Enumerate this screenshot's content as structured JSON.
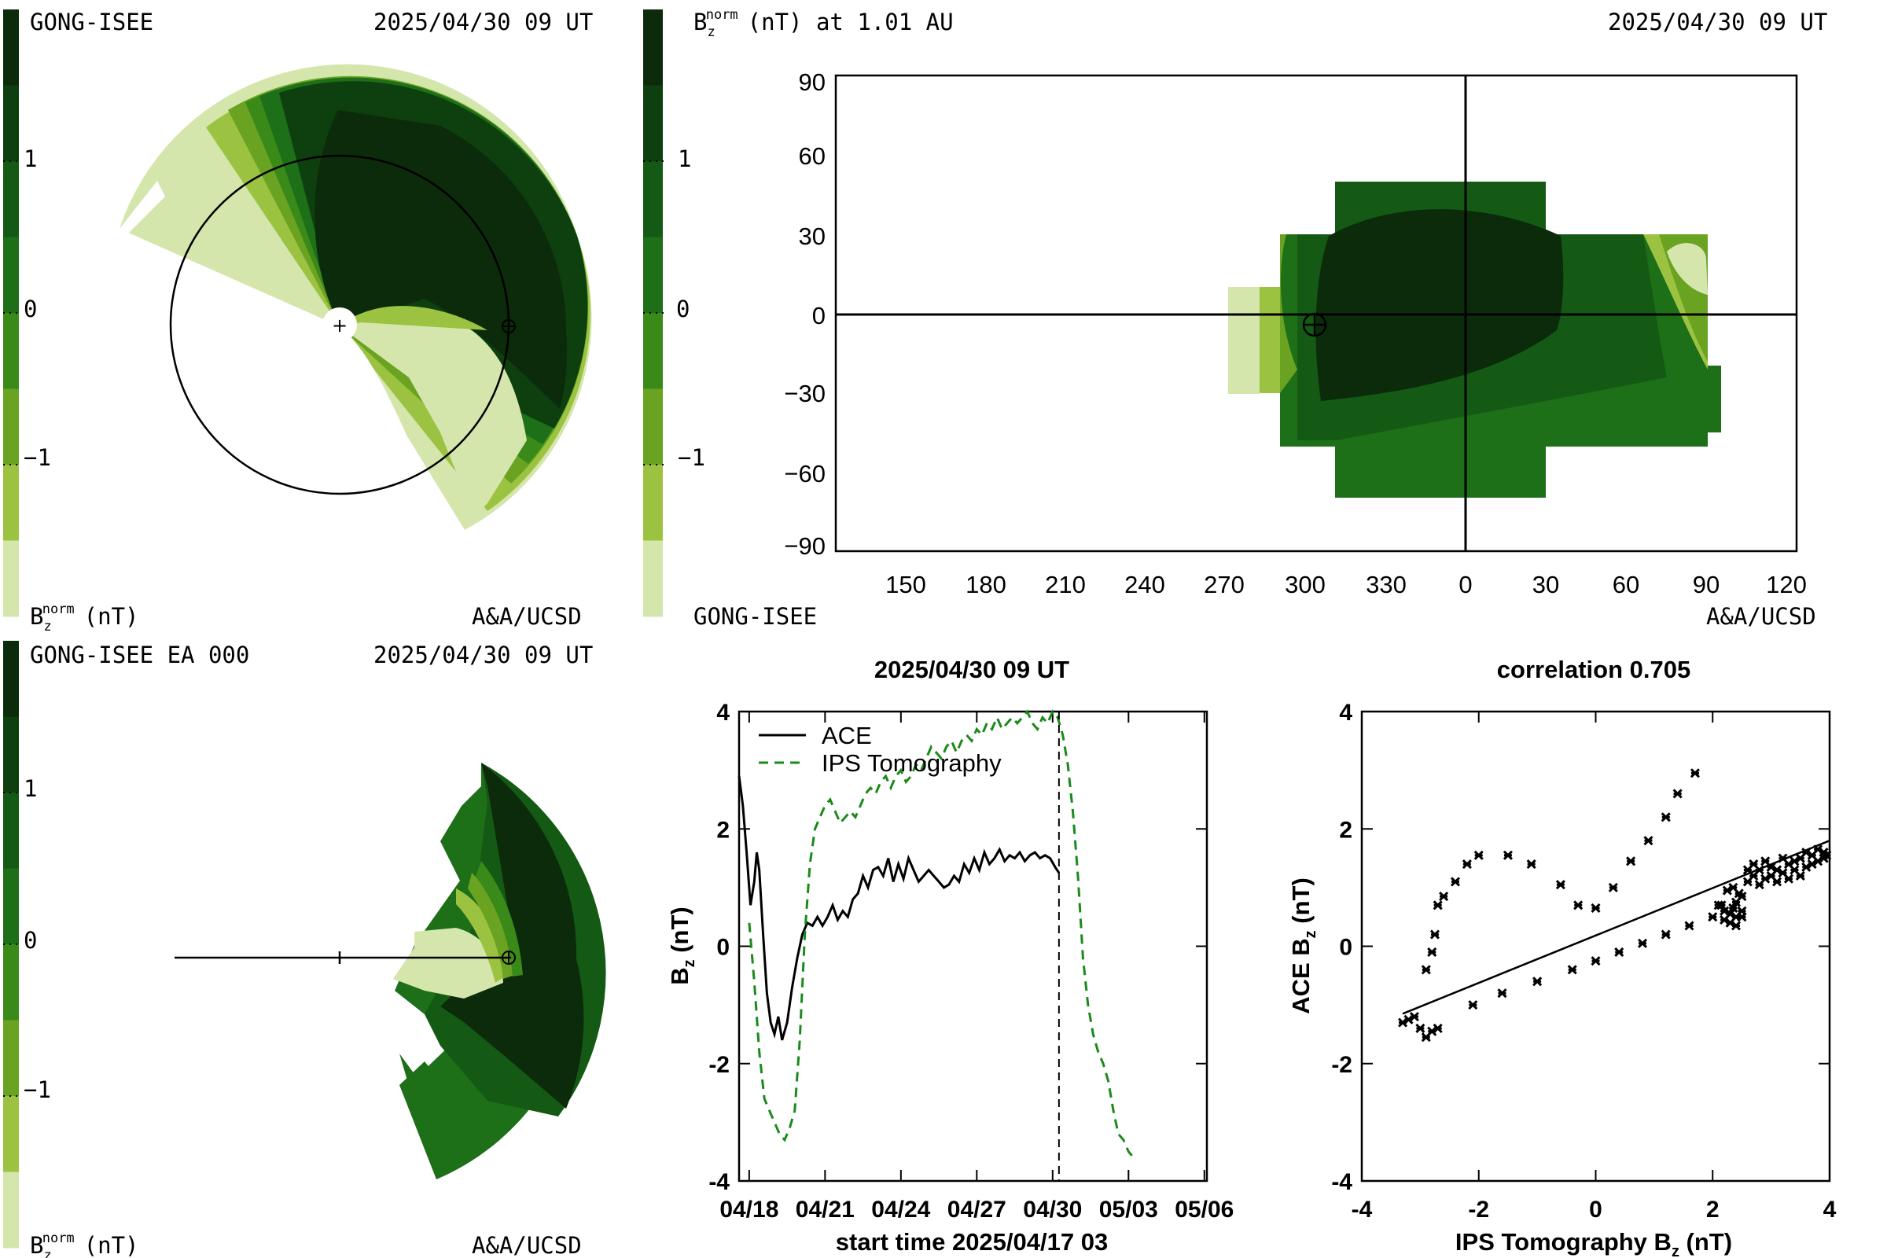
{
  "colors": {
    "scale": [
      "#0b2b0b",
      "#0e3f0e",
      "#145a14",
      "#1d6f18",
      "#3a8a1a",
      "#6aa321",
      "#9cc242",
      "#d4e6ac"
    ],
    "ace_line": "#000000",
    "ips_line": "#1a8a1a",
    "axis": "#000000"
  },
  "top_left": {
    "label_left": "GONG-ISEE",
    "timestamp": "2025/04/30 09 UT",
    "bottom_units": "B",
    "bottom_units_sub": "z",
    "bottom_units_sup": "norm",
    "bottom_units_rest": "(nT)",
    "credit": "A&A/UCSD",
    "colorbar_ticks": [
      "1",
      "0",
      "−1"
    ]
  },
  "top_right": {
    "title_symbol": "B",
    "title_sub": "z",
    "title_sup": "norm",
    "title_rest": "(nT) at 1.01 AU",
    "timestamp": "2025/04/30 09 UT",
    "bottom_left": "GONG-ISEE",
    "credit": "A&A/UCSD",
    "colorbar_ticks": [
      "1",
      "0",
      "−1"
    ],
    "y_ticks": [
      "90",
      "60",
      "30",
      "0",
      "−30",
      "−60",
      "−90"
    ],
    "x_ticks": [
      "150",
      "180",
      "210",
      "240",
      "270",
      "300",
      "330",
      "0",
      "30",
      "60",
      "90",
      "120"
    ]
  },
  "bottom_left": {
    "label_left": "GONG-ISEE EA 000",
    "timestamp": "2025/04/30 09 UT",
    "bottom_units": "B",
    "bottom_units_sub": "z",
    "bottom_units_sup": "norm",
    "bottom_units_rest": "(nT)",
    "credit": "A&A/UCSD",
    "colorbar_ticks": [
      "1",
      "0",
      "−1"
    ]
  },
  "chart_data": [
    {
      "type": "line",
      "title": "2025/04/30 09 UT",
      "xlabel": "start time 2025/04/17 03",
      "ylabel": "B_z (nT)",
      "ylabel_main": "B",
      "ylabel_sub": "z",
      "ylabel_rest": " (nT)",
      "x_tick_labels": [
        "04/18",
        "04/21",
        "04/24",
        "04/27",
        "04/30",
        "05/03",
        "05/06"
      ],
      "x_tick_days": [
        1,
        4,
        7,
        10,
        13,
        16,
        19
      ],
      "xlim_days": [
        0.6,
        19.1
      ],
      "ylim": [
        -4,
        4
      ],
      "y_ticks": [
        -4,
        -2,
        0,
        2,
        4
      ],
      "current_time_day": 13.25,
      "legend_position": "top-left",
      "series": [
        {
          "name": "ACE",
          "style": "solid",
          "x_days": [
            0.6,
            0.75,
            0.9,
            1.05,
            1.2,
            1.3,
            1.4,
            1.55,
            1.7,
            1.85,
            2.0,
            2.15,
            2.3,
            2.5,
            2.7,
            2.9,
            3.1,
            3.3,
            3.5,
            3.7,
            3.9,
            4.1,
            4.3,
            4.5,
            4.7,
            4.9,
            5.1,
            5.3,
            5.5,
            5.7,
            5.9,
            6.1,
            6.3,
            6.5,
            6.7,
            6.9,
            7.1,
            7.3,
            7.5,
            7.7,
            7.9,
            8.1,
            8.3,
            8.5,
            8.7,
            8.9,
            9.1,
            9.3,
            9.5,
            9.7,
            9.9,
            10.1,
            10.3,
            10.5,
            10.7,
            10.9,
            11.1,
            11.3,
            11.5,
            11.7,
            11.9,
            12.1,
            12.3,
            12.5,
            12.7,
            12.9,
            13.1,
            13.25
          ],
          "y": [
            2.9,
            2.4,
            1.6,
            0.7,
            1.1,
            1.6,
            1.3,
            0.2,
            -0.8,
            -1.3,
            -1.5,
            -1.2,
            -1.6,
            -1.3,
            -0.7,
            -0.2,
            0.2,
            0.4,
            0.35,
            0.5,
            0.35,
            0.5,
            0.7,
            0.45,
            0.6,
            0.5,
            0.8,
            0.9,
            1.2,
            1.0,
            1.3,
            1.35,
            1.2,
            1.5,
            1.1,
            1.4,
            1.15,
            1.5,
            1.3,
            1.1,
            1.2,
            1.3,
            1.2,
            1.1,
            1.0,
            1.05,
            1.2,
            1.1,
            1.4,
            1.25,
            1.5,
            1.3,
            1.6,
            1.4,
            1.5,
            1.65,
            1.45,
            1.55,
            1.5,
            1.6,
            1.45,
            1.55,
            1.6,
            1.5,
            1.55,
            1.5,
            1.35,
            1.25
          ]
        },
        {
          "name": "IPS Tomography",
          "style": "dashed",
          "x_days": [
            1.0,
            1.2,
            1.4,
            1.6,
            1.8,
            2.0,
            2.2,
            2.4,
            2.6,
            2.8,
            3.0,
            3.2,
            3.4,
            3.6,
            3.8,
            4.0,
            4.2,
            4.4,
            4.6,
            4.8,
            5.0,
            5.2,
            5.4,
            5.6,
            5.8,
            6.0,
            6.2,
            6.4,
            6.6,
            6.8,
            7.0,
            7.2,
            7.4,
            7.6,
            7.8,
            8.0,
            8.2,
            8.4,
            8.6,
            8.8,
            9.0,
            9.2,
            9.4,
            9.6,
            9.8,
            10.0,
            10.2,
            10.4,
            10.6,
            10.8,
            11.0,
            11.2,
            11.4,
            11.6,
            11.8,
            12.0,
            12.2,
            12.4,
            12.6,
            12.8,
            13.0,
            13.2,
            13.4,
            13.6,
            13.8,
            14.0,
            14.2,
            14.4,
            14.6,
            14.8,
            15.0,
            15.2,
            15.4,
            15.6,
            15.8,
            16.0,
            16.2
          ],
          "y": [
            0.4,
            -0.6,
            -1.8,
            -2.6,
            -2.8,
            -3.0,
            -3.2,
            -3.3,
            -3.1,
            -2.8,
            -1.6,
            0.2,
            1.4,
            2.0,
            2.2,
            2.4,
            2.5,
            2.3,
            2.1,
            2.2,
            2.3,
            2.2,
            2.4,
            2.6,
            2.7,
            2.6,
            2.8,
            2.9,
            2.7,
            2.9,
            3.0,
            2.8,
            2.9,
            3.1,
            3.0,
            3.2,
            3.4,
            3.3,
            3.2,
            3.4,
            3.5,
            3.3,
            3.5,
            3.6,
            3.5,
            3.7,
            3.6,
            3.8,
            3.7,
            3.9,
            3.7,
            3.8,
            3.9,
            3.8,
            3.9,
            4.0,
            3.8,
            3.7,
            3.9,
            3.8,
            4.0,
            3.9,
            3.6,
            3.1,
            2.3,
            1.2,
            -0.2,
            -1.0,
            -1.5,
            -1.8,
            -2.0,
            -2.3,
            -2.8,
            -3.2,
            -3.3,
            -3.5,
            -3.6
          ]
        }
      ]
    },
    {
      "type": "scatter",
      "title": "correlation 0.705",
      "xlabel": "IPS Tomography B_z (nT)",
      "xlabel_main": "IPS Tomography B",
      "xlabel_sub": "z",
      "xlabel_rest": " (nT)",
      "ylabel": "ACE B_z (nT)",
      "ylabel_main": "ACE B",
      "ylabel_sub": "z",
      "ylabel_rest": " (nT)",
      "xlim": [
        -4,
        4
      ],
      "ylim": [
        -4,
        4
      ],
      "x_ticks": [
        -4,
        -2,
        0,
        2,
        4
      ],
      "y_ticks": [
        -4,
        -2,
        0,
        2,
        4
      ],
      "fit_line": {
        "x": [
          -3.3,
          4.0
        ],
        "y": [
          -1.15,
          1.8
        ]
      },
      "points": {
        "x": [
          -3.3,
          -3.2,
          -3.1,
          -3.0,
          -2.9,
          -2.8,
          -2.7,
          -2.9,
          -2.8,
          -2.75,
          -2.7,
          -2.6,
          -2.4,
          -2.2,
          -2.0,
          -1.5,
          -1.1,
          -0.6,
          -0.3,
          0.0,
          0.3,
          0.6,
          0.9,
          1.2,
          1.4,
          1.7,
          -2.1,
          -1.6,
          -1.0,
          -0.4,
          0.0,
          0.4,
          0.8,
          1.2,
          1.6,
          2.0,
          2.1,
          2.2,
          2.2,
          2.3,
          2.35,
          2.4,
          2.4,
          2.5,
          2.5,
          2.6,
          2.6,
          2.7,
          2.7,
          2.8,
          2.8,
          2.9,
          2.9,
          3.0,
          3.0,
          3.1,
          3.1,
          3.2,
          3.2,
          3.3,
          3.3,
          3.4,
          3.4,
          3.5,
          3.5,
          3.6,
          3.6,
          3.7,
          3.7,
          3.8,
          3.8,
          3.9,
          3.9,
          3.95,
          2.25,
          2.35,
          2.45,
          2.15,
          2.3,
          2.4,
          2.5
        ],
        "y": [
          -1.3,
          -1.25,
          -1.2,
          -1.4,
          -1.55,
          -1.45,
          -1.4,
          -0.4,
          -0.1,
          0.2,
          0.7,
          0.85,
          1.1,
          1.4,
          1.55,
          1.55,
          1.4,
          1.05,
          0.7,
          0.65,
          1.0,
          1.45,
          1.8,
          2.2,
          2.6,
          2.95,
          -1.0,
          -0.8,
          -0.6,
          -0.4,
          -0.25,
          -0.1,
          0.05,
          0.2,
          0.35,
          0.5,
          0.7,
          0.6,
          0.45,
          0.55,
          0.65,
          0.5,
          0.75,
          0.6,
          0.85,
          1.3,
          1.1,
          1.4,
          1.2,
          1.3,
          1.05,
          1.45,
          1.15,
          1.35,
          1.2,
          1.1,
          1.3,
          1.5,
          1.25,
          1.4,
          1.15,
          1.3,
          1.45,
          1.2,
          1.5,
          1.35,
          1.6,
          1.4,
          1.55,
          1.45,
          1.65,
          1.5,
          1.6,
          1.55,
          0.95,
          1.0,
          0.9,
          0.7,
          0.4,
          0.35,
          0.5
        ]
      }
    }
  ]
}
